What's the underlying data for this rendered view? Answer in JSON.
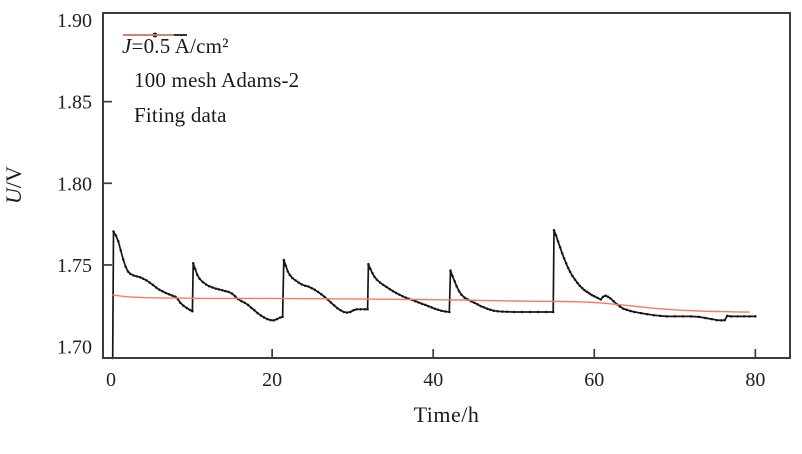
{
  "figure": {
    "legend": {
      "condition_var": "J",
      "condition_rest": "=0.5 A/cm²",
      "series1_label": "100 mesh Adams-2",
      "series2_label": "Fiting data"
    }
  },
  "chart_data": {
    "type": "line",
    "title": "",
    "xlabel": "Time/h",
    "ylabel_var": "U",
    "ylabel_rest": "/V",
    "grid": false,
    "legend_position": "top-left",
    "xlim": [
      -1,
      84.3
    ],
    "ylim": [
      1.693,
      1.9043
    ],
    "x_ticks": [
      0,
      20,
      40,
      60,
      80
    ],
    "x_tick_labels": [
      "0",
      "20",
      "40",
      "60",
      "80"
    ],
    "y_ticks": [
      1.7,
      1.75,
      1.8,
      1.85,
      1.9
    ],
    "y_tick_labels": [
      "1.70",
      "1.75",
      "1.80",
      "1.85",
      "1.90"
    ],
    "axis_color": "#3b3b3b",
    "series": [
      {
        "name": "100 mesh Adams-2",
        "color": "#161616",
        "width": 1.7,
        "marker": "dot",
        "points": [
          [
            0.2,
            1.693
          ],
          [
            0.3,
            1.7705
          ],
          [
            0.6,
            1.768
          ],
          [
            0.9,
            1.7645
          ],
          [
            1.2,
            1.759
          ],
          [
            1.5,
            1.7535
          ],
          [
            1.8,
            1.749
          ],
          [
            2.1,
            1.746
          ],
          [
            2.4,
            1.7445
          ],
          [
            2.8,
            1.7435
          ],
          [
            3.2,
            1.743
          ],
          [
            3.6,
            1.7425
          ],
          [
            4.0,
            1.7415
          ],
          [
            4.4,
            1.7405
          ],
          [
            4.8,
            1.7392
          ],
          [
            5.2,
            1.7378
          ],
          [
            5.6,
            1.7362
          ],
          [
            6.0,
            1.7348
          ],
          [
            6.4,
            1.7338
          ],
          [
            6.8,
            1.7328
          ],
          [
            7.2,
            1.732
          ],
          [
            7.6,
            1.7312
          ],
          [
            8.0,
            1.7305
          ],
          [
            8.3,
            1.729
          ],
          [
            8.6,
            1.7268
          ],
          [
            9.0,
            1.725
          ],
          [
            9.4,
            1.7236
          ],
          [
            9.8,
            1.7224
          ],
          [
            10.1,
            1.7216
          ],
          [
            10.2,
            1.751
          ],
          [
            10.45,
            1.7475
          ],
          [
            10.7,
            1.744
          ],
          [
            11.0,
            1.7415
          ],
          [
            11.4,
            1.7395
          ],
          [
            11.8,
            1.738
          ],
          [
            12.2,
            1.737
          ],
          [
            12.6,
            1.7362
          ],
          [
            13.0,
            1.7355
          ],
          [
            13.4,
            1.735
          ],
          [
            13.8,
            1.7345
          ],
          [
            14.2,
            1.734
          ],
          [
            14.6,
            1.7335
          ],
          [
            15.0,
            1.7325
          ],
          [
            15.4,
            1.7308
          ],
          [
            15.8,
            1.729
          ],
          [
            16.2,
            1.7278
          ],
          [
            16.6,
            1.7268
          ],
          [
            17.0,
            1.7255
          ],
          [
            17.4,
            1.7238
          ],
          [
            17.8,
            1.7222
          ],
          [
            18.2,
            1.7205
          ],
          [
            18.6,
            1.719
          ],
          [
            19.0,
            1.7178
          ],
          [
            19.4,
            1.7168
          ],
          [
            19.8,
            1.7162
          ],
          [
            20.2,
            1.716
          ],
          [
            20.6,
            1.7168
          ],
          [
            21.0,
            1.7178
          ],
          [
            21.3,
            1.7182
          ],
          [
            21.45,
            1.753
          ],
          [
            21.7,
            1.7495
          ],
          [
            21.95,
            1.746
          ],
          [
            22.2,
            1.7438
          ],
          [
            22.5,
            1.742
          ],
          [
            22.9,
            1.7405
          ],
          [
            23.3,
            1.7392
          ],
          [
            23.7,
            1.738
          ],
          [
            24.1,
            1.7372
          ],
          [
            24.5,
            1.7368
          ],
          [
            24.9,
            1.7358
          ],
          [
            25.3,
            1.7348
          ],
          [
            25.7,
            1.7335
          ],
          [
            26.1,
            1.732
          ],
          [
            26.5,
            1.7305
          ],
          [
            26.9,
            1.7288
          ],
          [
            27.3,
            1.727
          ],
          [
            27.7,
            1.7252
          ],
          [
            28.1,
            1.7235
          ],
          [
            28.5,
            1.7222
          ],
          [
            28.9,
            1.7212
          ],
          [
            29.3,
            1.7208
          ],
          [
            29.7,
            1.7212
          ],
          [
            30.1,
            1.7222
          ],
          [
            30.5,
            1.7228
          ],
          [
            31.0,
            1.7228
          ],
          [
            31.5,
            1.7228
          ],
          [
            31.85,
            1.7228
          ],
          [
            31.95,
            1.7505
          ],
          [
            32.2,
            1.7475
          ],
          [
            32.45,
            1.745
          ],
          [
            32.7,
            1.7428
          ],
          [
            33.0,
            1.741
          ],
          [
            33.4,
            1.7392
          ],
          [
            33.8,
            1.7378
          ],
          [
            34.2,
            1.7365
          ],
          [
            34.6,
            1.7352
          ],
          [
            35.0,
            1.734
          ],
          [
            35.4,
            1.7328
          ],
          [
            35.8,
            1.7318
          ],
          [
            36.2,
            1.7308
          ],
          [
            36.6,
            1.73
          ],
          [
            37.0,
            1.7292
          ],
          [
            37.4,
            1.7285
          ],
          [
            37.8,
            1.7278
          ],
          [
            38.2,
            1.727
          ],
          [
            38.6,
            1.7262
          ],
          [
            39.0,
            1.7255
          ],
          [
            39.4,
            1.7248
          ],
          [
            39.8,
            1.724
          ],
          [
            40.2,
            1.7232
          ],
          [
            40.6,
            1.7225
          ],
          [
            41.0,
            1.722
          ],
          [
            41.5,
            1.7215
          ],
          [
            42.0,
            1.7212
          ],
          [
            42.15,
            1.7465
          ],
          [
            42.4,
            1.7432
          ],
          [
            42.65,
            1.74
          ],
          [
            42.9,
            1.737
          ],
          [
            43.2,
            1.734
          ],
          [
            43.5,
            1.7318
          ],
          [
            43.9,
            1.73
          ],
          [
            44.3,
            1.7288
          ],
          [
            44.7,
            1.7278
          ],
          [
            45.1,
            1.7268
          ],
          [
            45.5,
            1.7258
          ],
          [
            45.9,
            1.7248
          ],
          [
            46.3,
            1.724
          ],
          [
            46.7,
            1.7232
          ],
          [
            47.1,
            1.7225
          ],
          [
            47.5,
            1.722
          ],
          [
            48.0,
            1.7216
          ],
          [
            48.6,
            1.7214
          ],
          [
            49.2,
            1.7213
          ],
          [
            50,
            1.7212
          ],
          [
            51,
            1.7212
          ],
          [
            52,
            1.7212
          ],
          [
            53,
            1.7212
          ],
          [
            54,
            1.7212
          ],
          [
            54.9,
            1.7212
          ],
          [
            55.0,
            1.7712
          ],
          [
            55.25,
            1.7682
          ],
          [
            55.5,
            1.7645
          ],
          [
            55.75,
            1.7608
          ],
          [
            56.0,
            1.7572
          ],
          [
            56.25,
            1.754
          ],
          [
            56.5,
            1.751
          ],
          [
            56.75,
            1.7482
          ],
          [
            57.0,
            1.7458
          ],
          [
            57.3,
            1.7432
          ],
          [
            57.6,
            1.741
          ],
          [
            57.9,
            1.739
          ],
          [
            58.2,
            1.7372
          ],
          [
            58.5,
            1.7358
          ],
          [
            58.8,
            1.7345
          ],
          [
            59.1,
            1.7335
          ],
          [
            59.4,
            1.7325
          ],
          [
            59.7,
            1.7315
          ],
          [
            60.0,
            1.7308
          ],
          [
            60.4,
            1.7298
          ],
          [
            60.8,
            1.7288
          ],
          [
            61.1,
            1.7305
          ],
          [
            61.4,
            1.7312
          ],
          [
            61.7,
            1.7305
          ],
          [
            62.0,
            1.7295
          ],
          [
            62.4,
            1.7278
          ],
          [
            62.8,
            1.726
          ],
          [
            63.2,
            1.7245
          ],
          [
            63.6,
            1.7232
          ],
          [
            64.0,
            1.7225
          ],
          [
            64.5,
            1.7218
          ],
          [
            65.0,
            1.7212
          ],
          [
            65.8,
            1.7205
          ],
          [
            66.6,
            1.7198
          ],
          [
            67.4,
            1.7192
          ],
          [
            68.2,
            1.7188
          ],
          [
            69.0,
            1.7185
          ],
          [
            70,
            1.7185
          ],
          [
            71,
            1.7185
          ],
          [
            72,
            1.7185
          ],
          [
            73,
            1.7182
          ],
          [
            73.8,
            1.7175
          ],
          [
            74.6,
            1.7168
          ],
          [
            75.2,
            1.7162
          ],
          [
            75.8,
            1.716
          ],
          [
            76.2,
            1.7162
          ],
          [
            76.5,
            1.7188
          ],
          [
            77.0,
            1.7185
          ],
          [
            77.8,
            1.7185
          ],
          [
            78.6,
            1.7185
          ],
          [
            79.3,
            1.7185
          ],
          [
            80.0,
            1.7185
          ]
        ]
      },
      {
        "name": "Fiting data",
        "color": "#f47e5b",
        "width": 1.4,
        "marker": "none",
        "points": [
          [
            0.2,
            1.7315
          ],
          [
            2,
            1.7305
          ],
          [
            4,
            1.73
          ],
          [
            6,
            1.7298
          ],
          [
            8,
            1.7297
          ],
          [
            10,
            1.7296
          ],
          [
            12,
            1.7295
          ],
          [
            14,
            1.7295
          ],
          [
            16,
            1.7295
          ],
          [
            18,
            1.7295
          ],
          [
            20,
            1.7295
          ],
          [
            22,
            1.7294
          ],
          [
            24,
            1.7293
          ],
          [
            26,
            1.7293
          ],
          [
            28,
            1.7292
          ],
          [
            30,
            1.7292
          ],
          [
            32,
            1.7291
          ],
          [
            34,
            1.729
          ],
          [
            36,
            1.7289
          ],
          [
            38,
            1.7288
          ],
          [
            40,
            1.7287
          ],
          [
            42,
            1.7286
          ],
          [
            44,
            1.7285
          ],
          [
            46,
            1.7283
          ],
          [
            48,
            1.7281
          ],
          [
            50,
            1.7279
          ],
          [
            52,
            1.7278
          ],
          [
            54,
            1.7277
          ],
          [
            56,
            1.7276
          ],
          [
            58,
            1.7274
          ],
          [
            60,
            1.727
          ],
          [
            61,
            1.7266
          ],
          [
            62,
            1.7262
          ],
          [
            63,
            1.7257
          ],
          [
            64,
            1.7252
          ],
          [
            65,
            1.7247
          ],
          [
            66,
            1.7242
          ],
          [
            67,
            1.7237
          ],
          [
            68,
            1.7232
          ],
          [
            69,
            1.7228
          ],
          [
            70,
            1.7225
          ],
          [
            71,
            1.7222
          ],
          [
            72,
            1.722
          ],
          [
            73,
            1.7218
          ],
          [
            74,
            1.7216
          ],
          [
            75,
            1.7215
          ],
          [
            76,
            1.7214
          ],
          [
            77,
            1.7213
          ],
          [
            78,
            1.7212
          ],
          [
            79.3,
            1.7211
          ]
        ]
      }
    ]
  }
}
